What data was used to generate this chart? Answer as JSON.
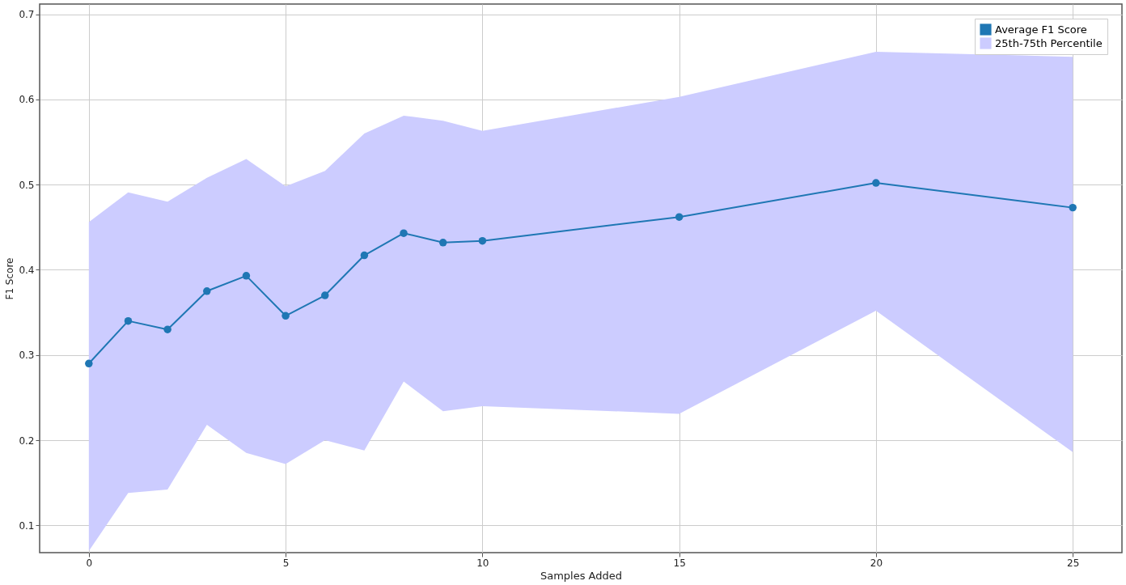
{
  "chart_data": {
    "type": "line",
    "xlabel": "Samples Added",
    "ylabel": "F1 Score",
    "x": [
      0,
      1,
      2,
      3,
      4,
      5,
      6,
      7,
      8,
      9,
      10,
      15,
      20,
      25
    ],
    "series": [
      {
        "name": "Average F1 Score",
        "color": "#1f77b4",
        "values": [
          0.29,
          0.34,
          0.33,
          0.375,
          0.393,
          0.346,
          0.37,
          0.417,
          0.443,
          0.432,
          0.434,
          0.462,
          0.502,
          0.473
        ]
      },
      {
        "name": "25th-75th Percentile",
        "type": "area",
        "color": "#ccccff",
        "values": [
          null,
          null,
          null,
          null,
          null,
          null,
          null,
          null,
          null,
          null,
          null,
          null,
          null,
          null
        ],
        "lower": [
          0.07,
          0.138,
          0.142,
          0.218,
          0.185,
          0.172,
          0.2,
          0.188,
          0.269,
          0.234,
          0.24,
          0.231,
          0.352,
          0.186
        ],
        "upper": [
          0.456,
          0.491,
          0.48,
          0.508,
          0.53,
          0.498,
          0.516,
          0.56,
          0.581,
          0.575,
          0.563,
          0.603,
          0.656,
          0.65
        ]
      }
    ],
    "xlim": [
      -1.25,
      26.25
    ],
    "ylim": [
      0.068,
      0.712
    ],
    "xticks": [
      0,
      5,
      10,
      15,
      20,
      25
    ],
    "yticks": [
      0.1,
      0.2,
      0.3,
      0.4,
      0.5,
      0.6,
      0.7
    ],
    "grid": true,
    "legend": "top right",
    "marker": "circle",
    "line_style": "solid"
  }
}
